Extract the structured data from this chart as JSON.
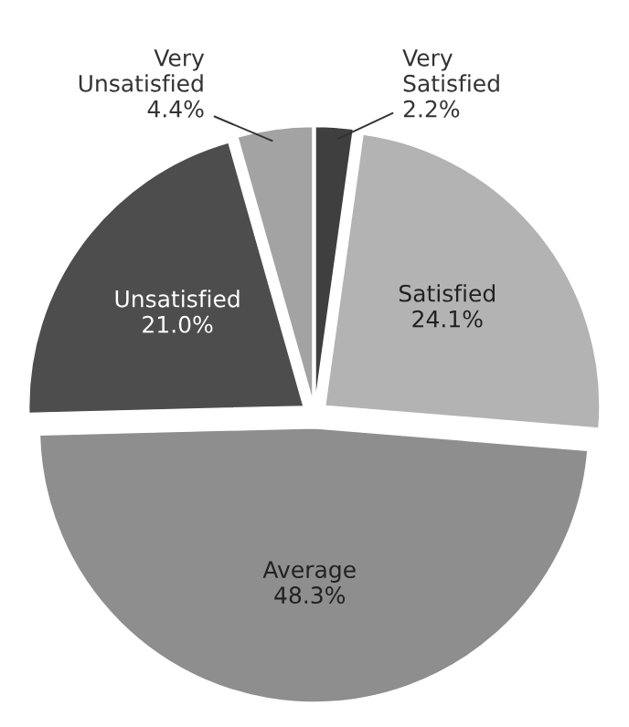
{
  "chart_data": {
    "type": "pie",
    "categories": [
      "Very Satisfied",
      "Satisfied",
      "Average",
      "Unsatisfied",
      "Very Unsatisfied"
    ],
    "values": [
      2.2,
      24.1,
      48.3,
      21.0,
      4.4
    ],
    "value_labels": [
      "2.2%",
      "24.1%",
      "48.3%",
      "21.0%",
      "4.4%"
    ],
    "colors": [
      "#3f3f3f",
      "#b3b3b3",
      "#8e8e8e",
      "#4d4d4d",
      "#a3a3a3"
    ],
    "legend": false
  }
}
